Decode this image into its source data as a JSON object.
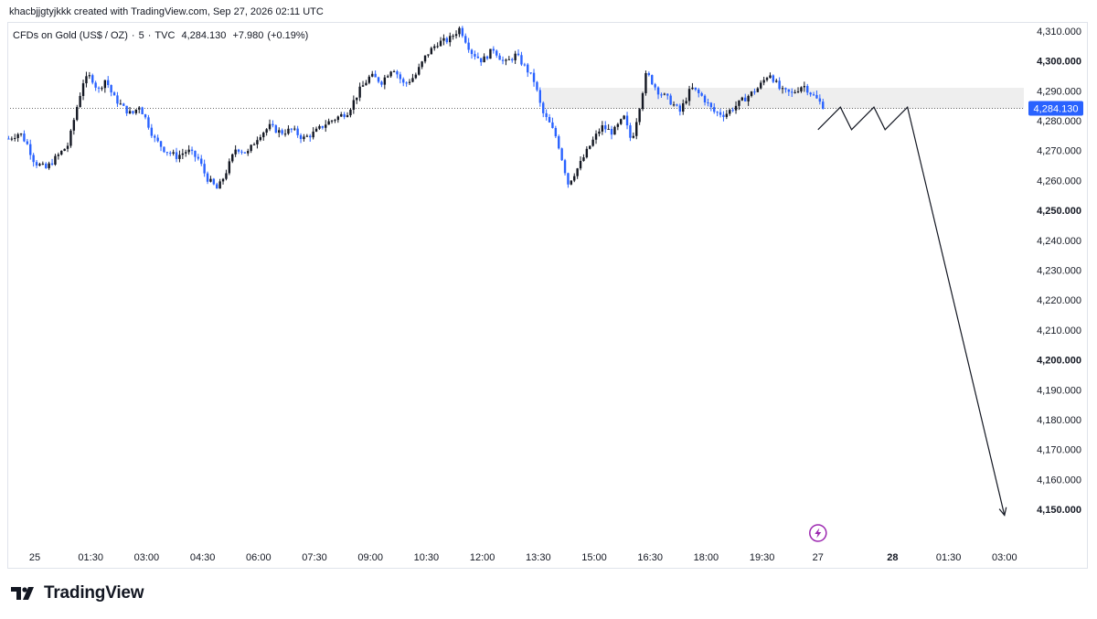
{
  "header": {
    "author_line": "khacbjjgtyjkkk created with TradingView.com, Sep 27, 2026 02:11 UTC"
  },
  "symbol": {
    "name": "CFDs on Gold (US$ / OZ)",
    "separator1": "·",
    "interval": "5",
    "separator2": "·",
    "exchange": "TVC",
    "last": "4,284.130",
    "change": "+7.980",
    "change_pct": "(+0.19%)"
  },
  "footer": {
    "brand": "TradingView"
  },
  "colors": {
    "up": "#131722",
    "down": "#2962ff",
    "price_tag": "#2962ff",
    "zone": "#eeeeee",
    "alert": "#9c27b0"
  },
  "chart_data": {
    "type": "candlestick",
    "title": "CFDs on Gold (US$ / OZ) · 5 · TVC",
    "last_price": 4284.13,
    "last_price_label": "4,284.130",
    "ylim": [
      4140,
      4315
    ],
    "y_ticks": [
      {
        "value": 4310,
        "label": "4,310.000",
        "bold": false
      },
      {
        "value": 4300,
        "label": "4,300.000",
        "bold": true
      },
      {
        "value": 4290,
        "label": "4,290.000",
        "bold": false
      },
      {
        "value": 4280,
        "label": "4,280.000",
        "bold": false
      },
      {
        "value": 4270,
        "label": "4,270.000",
        "bold": false
      },
      {
        "value": 4260,
        "label": "4,260.000",
        "bold": false
      },
      {
        "value": 4250,
        "label": "4,250.000",
        "bold": true
      },
      {
        "value": 4240,
        "label": "4,240.000",
        "bold": false
      },
      {
        "value": 4230,
        "label": "4,230.000",
        "bold": false
      },
      {
        "value": 4220,
        "label": "4,220.000",
        "bold": false
      },
      {
        "value": 4210,
        "label": "4,210.000",
        "bold": false
      },
      {
        "value": 4200,
        "label": "4,200.000",
        "bold": true
      },
      {
        "value": 4190,
        "label": "4,190.000",
        "bold": false
      },
      {
        "value": 4180,
        "label": "4,180.000",
        "bold": false
      },
      {
        "value": 4170,
        "label": "4,170.000",
        "bold": false
      },
      {
        "value": 4160,
        "label": "4,160.000",
        "bold": false
      },
      {
        "value": 4150,
        "label": "4,150.000",
        "bold": true
      }
    ],
    "x_ticks": [
      {
        "t": 0,
        "label": "25",
        "bold": false
      },
      {
        "t": 1.5,
        "label": "01:30",
        "bold": false
      },
      {
        "t": 3,
        "label": "03:00",
        "bold": false
      },
      {
        "t": 4.5,
        "label": "04:30",
        "bold": false
      },
      {
        "t": 6,
        "label": "06:00",
        "bold": false
      },
      {
        "t": 7.5,
        "label": "07:30",
        "bold": false
      },
      {
        "t": 9,
        "label": "09:00",
        "bold": false
      },
      {
        "t": 10.5,
        "label": "10:30",
        "bold": false
      },
      {
        "t": 12,
        "label": "12:00",
        "bold": false
      },
      {
        "t": 13.5,
        "label": "13:30",
        "bold": false
      },
      {
        "t": 15,
        "label": "15:00",
        "bold": false
      },
      {
        "t": 16.5,
        "label": "16:30",
        "bold": false
      },
      {
        "t": 18,
        "label": "18:00",
        "bold": false
      },
      {
        "t": 19.5,
        "label": "19:30",
        "bold": false
      },
      {
        "t": 21,
        "label": "27",
        "bold": false
      },
      {
        "t": 23,
        "label": "28",
        "bold": true
      },
      {
        "t": 24.5,
        "label": "01:30",
        "bold": false
      },
      {
        "t": 26,
        "label": "03:00",
        "bold": false
      }
    ],
    "xlim": [
      -0.7,
      27.0
    ],
    "price_path": [
      [
        -0.7,
        4274
      ],
      [
        -0.4,
        4276
      ],
      [
        -0.2,
        4272
      ],
      [
        0,
        4266
      ],
      [
        0.3,
        4264
      ],
      [
        0.6,
        4268
      ],
      [
        0.9,
        4272
      ],
      [
        1.1,
        4283
      ],
      [
        1.3,
        4293
      ],
      [
        1.5,
        4295
      ],
      [
        1.7,
        4290
      ],
      [
        1.9,
        4294
      ],
      [
        2.1,
        4288
      ],
      [
        2.4,
        4284
      ],
      [
        2.6,
        4282
      ],
      [
        2.8,
        4285
      ],
      [
        3.0,
        4280
      ],
      [
        3.2,
        4274
      ],
      [
        3.5,
        4270
      ],
      [
        3.8,
        4268
      ],
      [
        4.1,
        4270
      ],
      [
        4.4,
        4267
      ],
      [
        4.6,
        4261
      ],
      [
        4.9,
        4257
      ],
      [
        5.1,
        4262
      ],
      [
        5.4,
        4271
      ],
      [
        5.7,
        4269
      ],
      [
        6.0,
        4275
      ],
      [
        6.3,
        4278
      ],
      [
        6.6,
        4276
      ],
      [
        6.9,
        4277
      ],
      [
        7.2,
        4274
      ],
      [
        7.5,
        4276
      ],
      [
        7.8,
        4279
      ],
      [
        8.1,
        4281
      ],
      [
        8.4,
        4283
      ],
      [
        8.7,
        4290
      ],
      [
        9.0,
        4295
      ],
      [
        9.3,
        4293
      ],
      [
        9.6,
        4298
      ],
      [
        9.9,
        4292
      ],
      [
        10.2,
        4295
      ],
      [
        10.5,
        4302
      ],
      [
        10.8,
        4306
      ],
      [
        11.1,
        4307
      ],
      [
        11.4,
        4311
      ],
      [
        11.7,
        4303
      ],
      [
        12.0,
        4300
      ],
      [
        12.3,
        4304
      ],
      [
        12.6,
        4299
      ],
      [
        12.9,
        4302
      ],
      [
        13.2,
        4297
      ],
      [
        13.4,
        4293
      ],
      [
        13.6,
        4283
      ],
      [
        13.8,
        4279
      ],
      [
        14.0,
        4274
      ],
      [
        14.3,
        4259
      ],
      [
        14.6,
        4265
      ],
      [
        14.9,
        4272
      ],
      [
        15.2,
        4278
      ],
      [
        15.5,
        4276
      ],
      [
        15.8,
        4281
      ],
      [
        16.0,
        4273
      ],
      [
        16.2,
        4284
      ],
      [
        16.4,
        4296
      ],
      [
        16.7,
        4290
      ],
      [
        17.0,
        4287
      ],
      [
        17.3,
        4283
      ],
      [
        17.6,
        4291
      ],
      [
        17.9,
        4288
      ],
      [
        18.2,
        4283
      ],
      [
        18.5,
        4282
      ],
      [
        18.8,
        4285
      ],
      [
        19.1,
        4288
      ],
      [
        19.4,
        4291
      ],
      [
        19.7,
        4296
      ],
      [
        20.0,
        4290
      ],
      [
        20.3,
        4289
      ],
      [
        20.6,
        4292
      ],
      [
        20.9,
        4288
      ],
      [
        21.2,
        4284.13
      ]
    ],
    "resistance_zone": {
      "x_start": 13.6,
      "x_end": 26.6,
      "y_low": 4284,
      "y_high": 4291
    },
    "projection": [
      [
        21.0,
        4277
      ],
      [
        21.6,
        4284.5
      ],
      [
        21.9,
        4277
      ],
      [
        22.5,
        4284.5
      ],
      [
        22.8,
        4277
      ],
      [
        23.4,
        4284.5
      ],
      [
        26.0,
        4148
      ]
    ]
  }
}
